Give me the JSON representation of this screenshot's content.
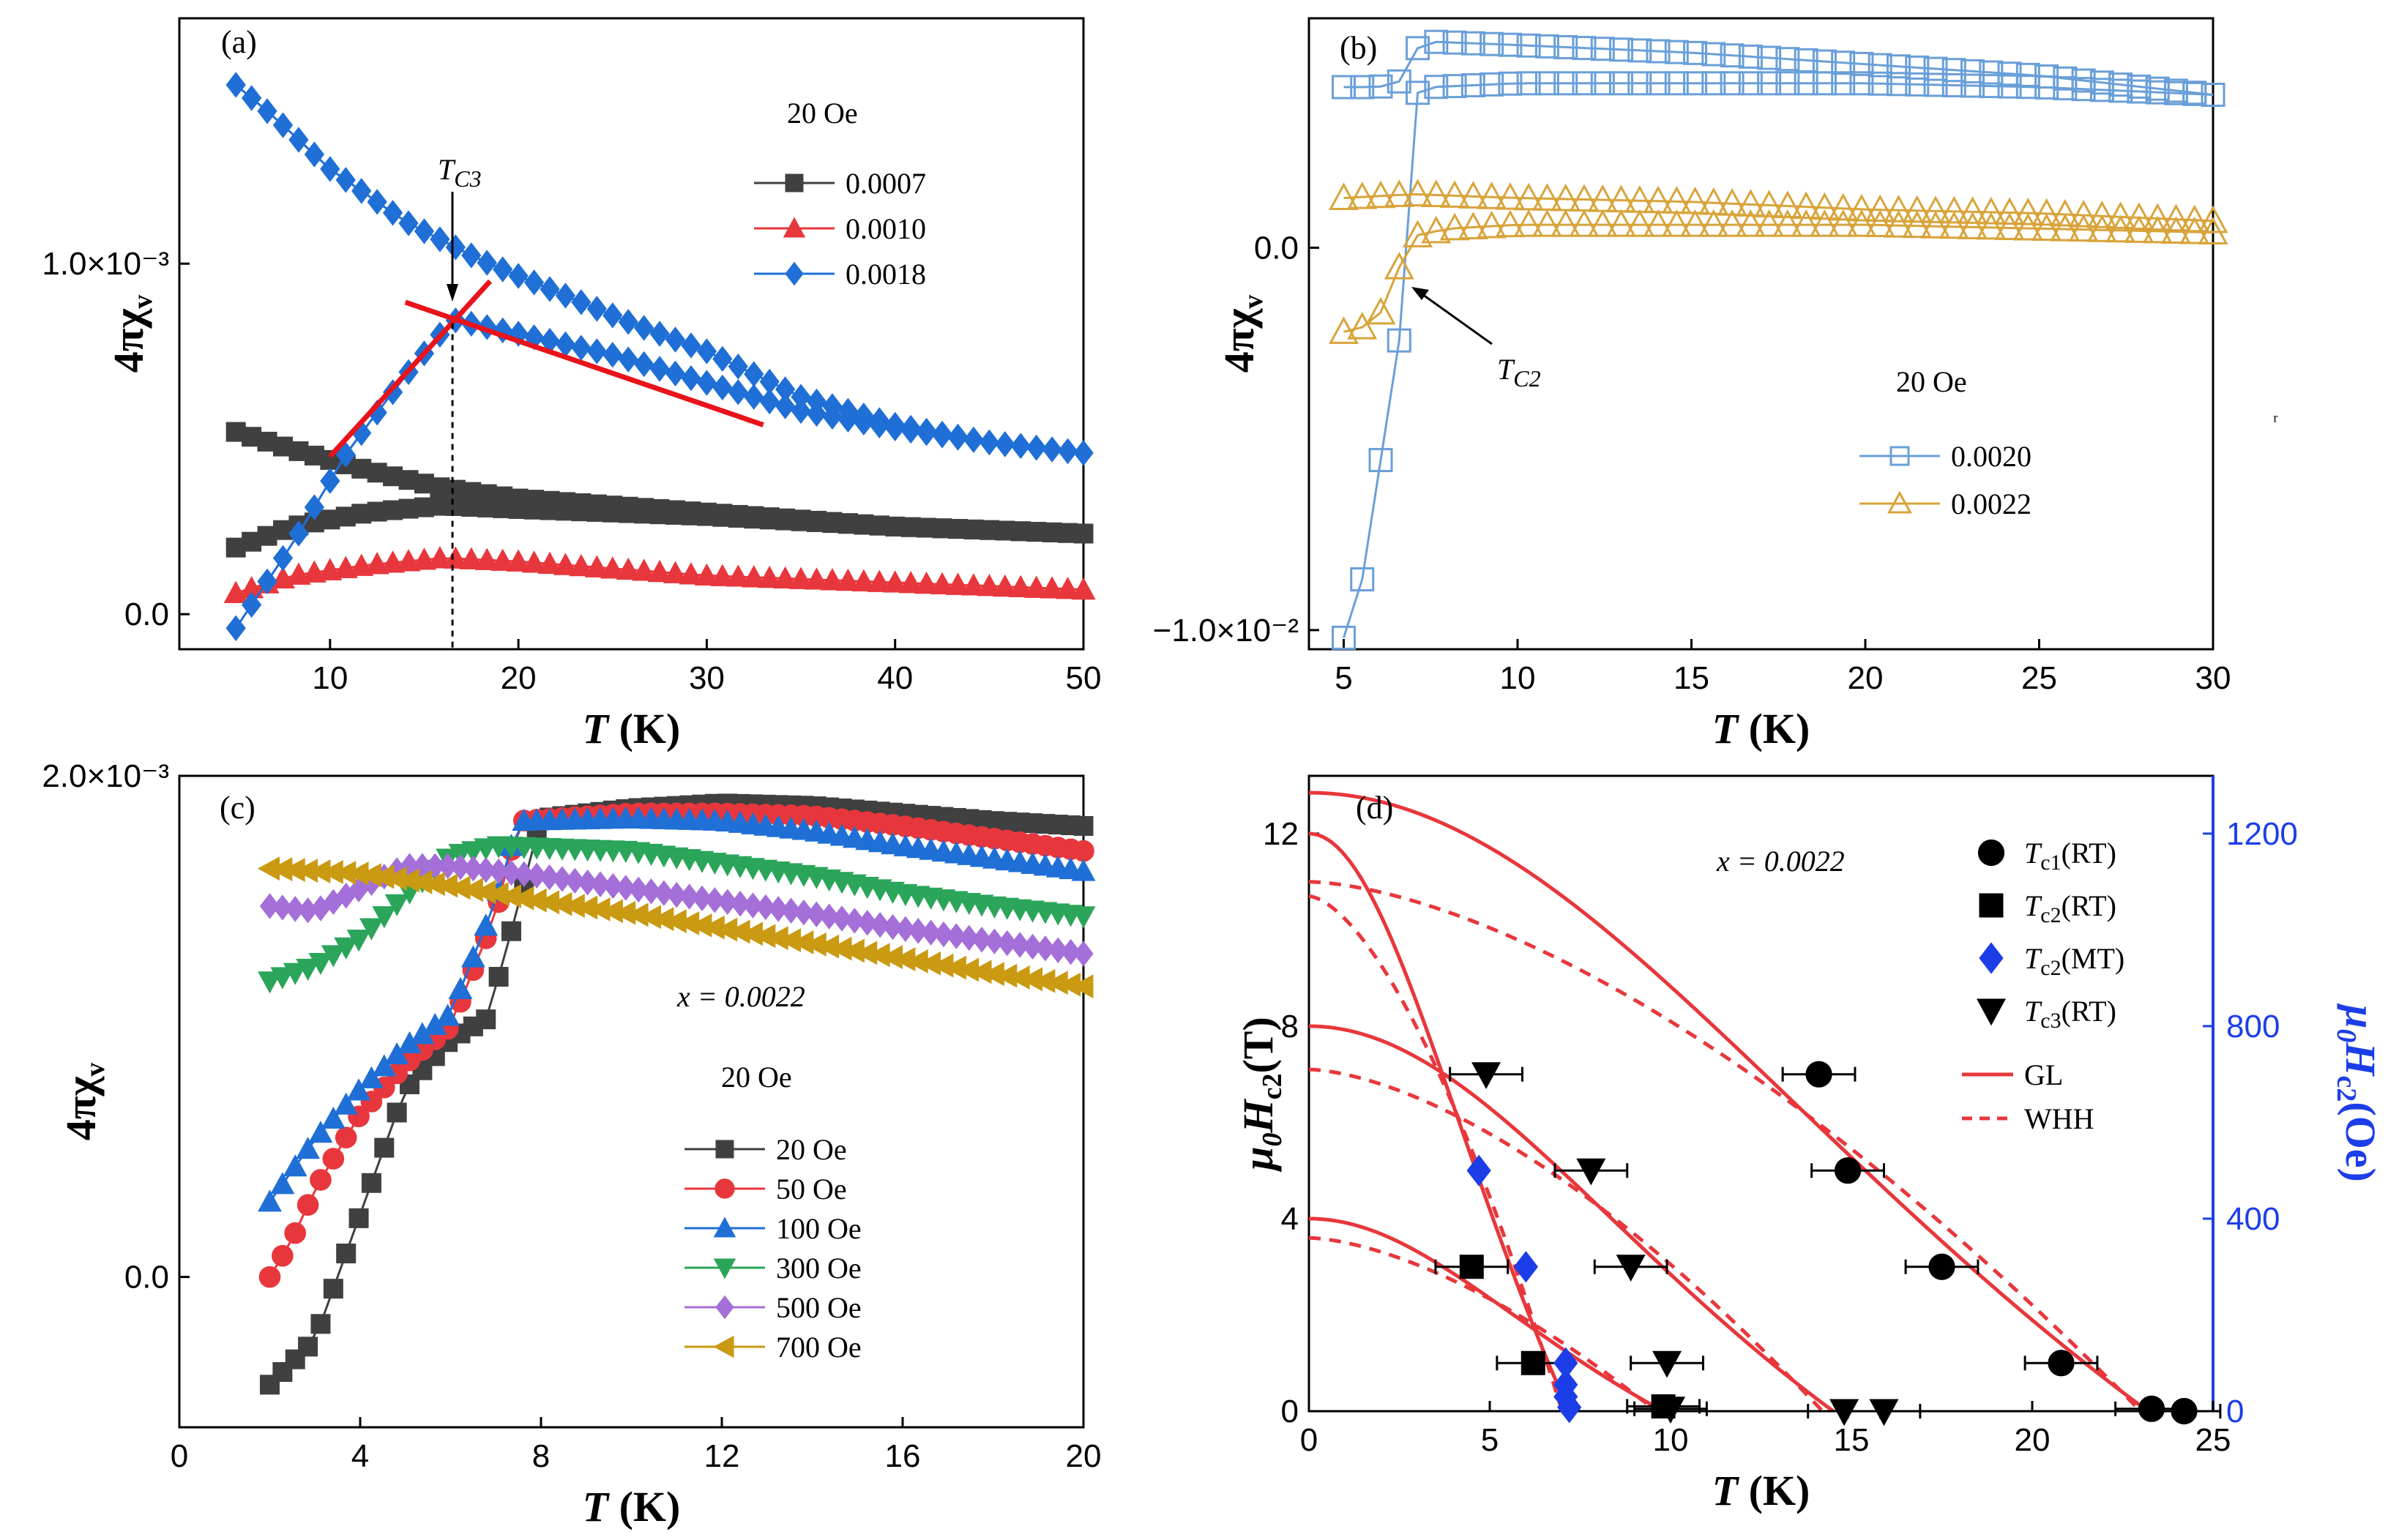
{
  "panels": {
    "a": {
      "label": "(a)",
      "field": "20 Oe",
      "tc_label": "T",
      "tc_sub": "C3"
    },
    "b": {
      "label": "(b)",
      "field": "20 Oe",
      "tc_label": "T",
      "tc_sub": "C2"
    },
    "c": {
      "label": "(c)",
      "field": "20 Oe",
      "x_note": "x = 0.0022"
    },
    "d": {
      "label": "(d)",
      "x_note": "x = 0.0022"
    }
  },
  "chart_data": [
    {
      "panel": "a",
      "type": "scatter",
      "xlabel": "T (K)",
      "ylabel": "4πχv",
      "xlim": [
        2,
        50
      ],
      "ylim": [
        -0.0001,
        0.0017
      ],
      "xticks": [
        10,
        20,
        30,
        40,
        50
      ],
      "yticks": [
        {
          "v": 0.0,
          "label": "0.0"
        },
        {
          "v": 0.001,
          "label": "1.0×10⁻³"
        }
      ],
      "legend_position": "top-right",
      "series": [
        {
          "name": "0.0007",
          "color": "#404040",
          "marker": "square",
          "zfc": [
            [
              5,
              0.00019
            ],
            [
              8,
              0.00025
            ],
            [
              12,
              0.00029
            ],
            [
              16,
              0.00031
            ],
            [
              20,
              0.0003
            ],
            [
              30,
              0.00028
            ],
            [
              40,
              0.00025
            ],
            [
              50,
              0.00023
            ]
          ],
          "fc": [
            [
              5,
              0.00052
            ],
            [
              8,
              0.00047
            ],
            [
              12,
              0.00041
            ],
            [
              16,
              0.00036
            ],
            [
              20,
              0.00033
            ],
            [
              30,
              0.00029
            ],
            [
              40,
              0.00025
            ],
            [
              50,
              0.00023
            ]
          ]
        },
        {
          "name": "0.0010",
          "color": "#e8373c",
          "marker": "triangle-up",
          "zfc": [
            [
              5,
              6e-05
            ],
            [
              8,
              0.00011
            ],
            [
              12,
              0.00014
            ],
            [
              16,
              0.00016
            ],
            [
              20,
              0.00015
            ],
            [
              30,
              0.00011
            ],
            [
              40,
              9e-05
            ],
            [
              50,
              7e-05
            ]
          ],
          "fc": [
            [
              5,
              6e-05
            ],
            [
              8,
              0.00011
            ],
            [
              12,
              0.00014
            ],
            [
              16,
              0.00016
            ],
            [
              20,
              0.00015
            ],
            [
              30,
              0.00011
            ],
            [
              40,
              9e-05
            ],
            [
              50,
              7e-05
            ]
          ]
        },
        {
          "name": "0.0018",
          "color": "#1f6fd6",
          "marker": "diamond",
          "zfc": [
            [
              5,
              -4e-05
            ],
            [
              8,
              0.0002
            ],
            [
              11,
              0.00047
            ],
            [
              14,
              0.00068
            ],
            [
              16.5,
              0.00084
            ],
            [
              20,
              0.0008
            ],
            [
              25,
              0.00074
            ],
            [
              30,
              0.00066
            ],
            [
              35,
              0.00058
            ],
            [
              40,
              0.00053
            ],
            [
              45,
              0.00049
            ],
            [
              50,
              0.00046
            ]
          ],
          "fc": [
            [
              5,
              0.00151
            ],
            [
              7,
              0.00142
            ],
            [
              10,
              0.00127
            ],
            [
              14,
              0.00112
            ],
            [
              18,
              0.00101
            ],
            [
              22,
              0.00092
            ],
            [
              26,
              0.00083
            ],
            [
              30,
              0.00075
            ],
            [
              35,
              0.00062
            ],
            [
              40,
              0.00054
            ],
            [
              45,
              0.00049
            ],
            [
              50,
              0.00046
            ]
          ]
        }
      ],
      "fit_lines": [
        {
          "x": [
            10,
            18.5
          ],
          "y": [
            0.00045,
            0.00095
          ]
        },
        {
          "x": [
            14,
            33
          ],
          "y": [
            0.00089,
            0.00054
          ]
        }
      ],
      "marker_line": {
        "x": 16.5
      }
    },
    {
      "panel": "b",
      "type": "scatter",
      "xlabel": "T (K)",
      "ylabel": "4πχv",
      "xlim": [
        4,
        30
      ],
      "ylim": [
        -0.0105,
        0.006
      ],
      "xticks": [
        5,
        10,
        15,
        20,
        25,
        30
      ],
      "yticks": [
        {
          "v": 0.0,
          "label": "0.0"
        },
        {
          "v": -0.01,
          "label": "−1.0×10⁻²"
        }
      ],
      "legend_position": "bottom-right",
      "series": [
        {
          "name": "0.0020",
          "color": "#6a9fd8",
          "marker": "open-square",
          "zfc": [
            [
              5,
              -0.0102
            ],
            [
              5.2,
              -0.0096
            ],
            [
              5.5,
              -0.0088
            ],
            [
              5.8,
              -0.0076
            ],
            [
              6.0,
              -0.006
            ],
            [
              6.2,
              -0.0046
            ],
            [
              6.4,
              -0.0036
            ],
            [
              6.6,
              -0.0024
            ],
            [
              6.8,
              -0.001
            ],
            [
              7.0,
              0.004
            ],
            [
              7.5,
              0.0042
            ],
            [
              10,
              0.0043
            ],
            [
              15,
              0.0043
            ],
            [
              20,
              0.0043
            ],
            [
              25,
              0.0042
            ],
            [
              30,
              0.004
            ]
          ],
          "fc": [
            [
              5,
              0.0042
            ],
            [
              6,
              0.0042
            ],
            [
              6.8,
              0.0044
            ],
            [
              7.2,
              0.0054
            ],
            [
              10,
              0.0053
            ],
            [
              15,
              0.0051
            ],
            [
              20,
              0.0048
            ],
            [
              25,
              0.0045
            ],
            [
              30,
              0.004
            ]
          ]
        },
        {
          "name": "0.0022",
          "color": "#d8a43a",
          "marker": "open-triangle-up",
          "zfc": [
            [
              5,
              -0.0022
            ],
            [
              5.5,
              -0.0021
            ],
            [
              6,
              -0.0018
            ],
            [
              6.3,
              -0.0013
            ],
            [
              6.6,
              -0.0005
            ],
            [
              7,
              0.0003
            ],
            [
              8,
              0.0005
            ],
            [
              10,
              0.0006
            ],
            [
              15,
              0.0006
            ],
            [
              20,
              0.0006
            ],
            [
              25,
              0.0005
            ],
            [
              30,
              0.0004
            ]
          ],
          "fc": [
            [
              5,
              0.0013
            ],
            [
              7,
              0.0014
            ],
            [
              10,
              0.0013
            ],
            [
              15,
              0.0012
            ],
            [
              20,
              0.001
            ],
            [
              25,
              0.0009
            ],
            [
              30,
              0.0007
            ]
          ]
        }
      ]
    },
    {
      "panel": "c",
      "type": "scatter",
      "xlabel": "T (K)",
      "ylabel": "4πχv",
      "xlim": [
        0,
        20
      ],
      "ylim": [
        -0.0006,
        0.002
      ],
      "xticks": [
        0,
        4,
        8,
        12,
        16,
        20
      ],
      "yticks": [
        {
          "v": 0.0,
          "label": "0.0"
        },
        {
          "v": 0.002,
          "label": "2.0×10⁻³"
        }
      ],
      "legend_position": "bottom-right",
      "series": [
        {
          "name": "20 Oe",
          "color": "#404040",
          "marker": "square",
          "points": [
            [
              2,
              -0.00043
            ],
            [
              3,
              -0.00025
            ],
            [
              4,
              0.00025
            ],
            [
              5,
              0.00075
            ],
            [
              6,
              0.00095
            ],
            [
              6.8,
              0.00103
            ],
            [
              7.3,
              0.00135
            ],
            [
              8,
              0.00183
            ],
            [
              10,
              0.00187
            ],
            [
              12,
              0.00189
            ],
            [
              14,
              0.00188
            ],
            [
              16,
              0.00185
            ],
            [
              18,
              0.00182
            ],
            [
              20,
              0.0018
            ]
          ]
        },
        {
          "name": "50 Oe",
          "color": "#e8373c",
          "marker": "circle",
          "points": [
            [
              2,
              0.0
            ],
            [
              2.5,
              0.00015
            ],
            [
              3,
              0.00035
            ],
            [
              4,
              0.00065
            ],
            [
              5,
              0.00085
            ],
            [
              6,
              0.001
            ],
            [
              7,
              0.00145
            ],
            [
              7.5,
              0.00182
            ],
            [
              10,
              0.00185
            ],
            [
              12,
              0.00185
            ],
            [
              14,
              0.00184
            ],
            [
              16,
              0.0018
            ],
            [
              18,
              0.00175
            ],
            [
              20,
              0.0017
            ]
          ]
        },
        {
          "name": "100 Oe",
          "color": "#1f6fd6",
          "marker": "triangle-up",
          "points": [
            [
              2,
              0.0003
            ],
            [
              3,
              0.00055
            ],
            [
              4,
              0.00075
            ],
            [
              5,
              0.00092
            ],
            [
              6,
              0.00105
            ],
            [
              7,
              0.0015
            ],
            [
              7.5,
              0.00182
            ],
            [
              10,
              0.00183
            ],
            [
              12,
              0.00182
            ],
            [
              14,
              0.00178
            ],
            [
              16,
              0.00172
            ],
            [
              18,
              0.00167
            ],
            [
              20,
              0.00162
            ]
          ]
        },
        {
          "name": "300 Oe",
          "color": "#2aa55a",
          "marker": "triangle-down",
          "points": [
            [
              2,
              0.00118
            ],
            [
              3,
              0.00124
            ],
            [
              4,
              0.00135
            ],
            [
              5,
              0.00152
            ],
            [
              6,
              0.00168
            ],
            [
              7,
              0.00172
            ],
            [
              10,
              0.0017
            ],
            [
              12,
              0.00165
            ],
            [
              14,
              0.0016
            ],
            [
              16,
              0.00153
            ],
            [
              18,
              0.00148
            ],
            [
              20,
              0.00144
            ]
          ]
        },
        {
          "name": "500 Oe",
          "color": "#a46fd8",
          "marker": "diamond",
          "points": [
            [
              2,
              0.00148
            ],
            [
              3,
              0.00146
            ],
            [
              4,
              0.00155
            ],
            [
              5,
              0.00164
            ],
            [
              6,
              0.00164
            ],
            [
              8,
              0.0016
            ],
            [
              10,
              0.00155
            ],
            [
              12,
              0.0015
            ],
            [
              14,
              0.00145
            ],
            [
              16,
              0.00139
            ],
            [
              18,
              0.00134
            ],
            [
              20,
              0.00129
            ]
          ]
        },
        {
          "name": "700 Oe",
          "color": "#c99a12",
          "marker": "triangle-left",
          "points": [
            [
              2,
              0.00163
            ],
            [
              3,
              0.00162
            ],
            [
              4,
              0.00161
            ],
            [
              6,
              0.00156
            ],
            [
              8,
              0.0015
            ],
            [
              10,
              0.00145
            ],
            [
              12,
              0.00139
            ],
            [
              14,
              0.00133
            ],
            [
              16,
              0.00127
            ],
            [
              18,
              0.00121
            ],
            [
              20,
              0.00116
            ]
          ]
        }
      ]
    },
    {
      "panel": "d",
      "type": "scatter",
      "xlabel": "T (K)",
      "ylabel": "μ0Hc2(T)",
      "ylabel_right": "μ0Hc2(Oe)",
      "xlim": [
        0,
        25
      ],
      "ylim": [
        0,
        13.2
      ],
      "ylim_right": [
        0,
        1320
      ],
      "xticks": [
        0,
        5,
        10,
        15,
        20,
        25
      ],
      "yticks": [
        0,
        4,
        8,
        12
      ],
      "yticks_right": [
        0,
        400,
        800,
        1200
      ],
      "legend_position": "top-right",
      "series": [
        {
          "name": "Tc1(RT)",
          "marker": "circle",
          "color": "#000000",
          "points": [
            [
              14.1,
              7.0
            ],
            [
              14.9,
              5.0
            ],
            [
              17.5,
              3.0
            ],
            [
              20.8,
              1.0
            ],
            [
              23.3,
              0.05
            ],
            [
              24.2,
              0.0
            ]
          ],
          "xerr": 1.0
        },
        {
          "name": "Tc2(RT)",
          "marker": "square",
          "color": "#000000",
          "points": [
            [
              4.5,
              3.0
            ],
            [
              6.2,
              1.0
            ],
            [
              9.8,
              0.1
            ]
          ],
          "xerr": 1.0
        },
        {
          "name": "Tc2(MT)",
          "marker": "diamond",
          "color": "#1c3ee8",
          "points": [
            [
              4.7,
              5.0
            ],
            [
              6.0,
              3.0
            ],
            [
              7.1,
              1.0
            ],
            [
              7.1,
              0.55
            ],
            [
              7.1,
              0.3
            ],
            [
              7.2,
              0.08
            ]
          ]
        },
        {
          "name": "Tc3(RT)",
          "marker": "triangle-down",
          "color": "#000000",
          "points": [
            [
              4.9,
              7.0
            ],
            [
              7.8,
              5.0
            ],
            [
              8.9,
              3.0
            ],
            [
              9.9,
              1.0
            ],
            [
              10.0,
              0.05
            ],
            [
              14.8,
              0.0
            ],
            [
              15.9,
              0.0
            ]
          ],
          "xerr": 1.0
        }
      ],
      "curves": [
        {
          "name": "GL",
          "style": "solid",
          "color": "#e8373c",
          "Tc": 23.2,
          "H0": 12.85
        },
        {
          "name": "WHH",
          "style": "dashed",
          "color": "#e8373c",
          "Tc": 23.0,
          "H0": 11.0
        },
        {
          "style": "solid",
          "color": "#e8373c",
          "Tc": 7.2,
          "H0": 12.0
        },
        {
          "style": "dashed",
          "color": "#e8373c",
          "Tc": 7.0,
          "H0": 10.7
        },
        {
          "style": "solid",
          "color": "#e8373c",
          "Tc": 14.5,
          "H0": 8.0
        },
        {
          "style": "dashed",
          "color": "#e8373c",
          "Tc": 14.2,
          "H0": 7.1
        },
        {
          "style": "solid",
          "color": "#e8373c",
          "Tc": 9.8,
          "H0": 4.0
        },
        {
          "style": "dashed",
          "color": "#e8373c",
          "Tc": 9.6,
          "H0": 3.6
        }
      ]
    }
  ]
}
